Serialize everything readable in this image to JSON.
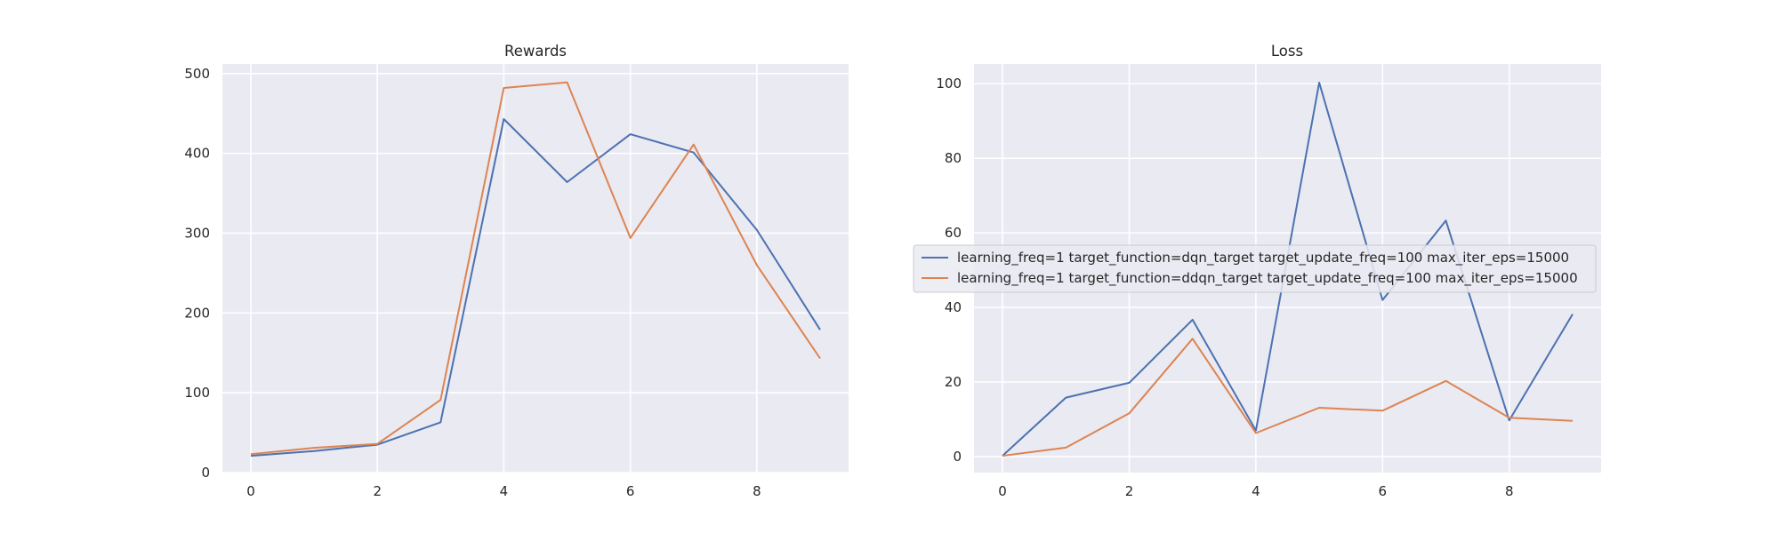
{
  "colors": {
    "dqn": "#4c72b0",
    "ddqn": "#dd8452",
    "background": "#eaeaf2",
    "grid": "#ffffff"
  },
  "legend": {
    "placement": "center-left",
    "entries": [
      "learning_freq=1 target_function=dqn_target target_update_freq=100 max_iter_eps=15000",
      "learning_freq=1 target_function=ddqn_target target_update_freq=100 max_iter_eps=15000"
    ]
  },
  "chart_data": [
    {
      "type": "line",
      "title": "Rewards",
      "xlabel": "",
      "ylabel": "",
      "x": [
        0,
        1,
        2,
        3,
        4,
        5,
        6,
        7,
        8,
        9
      ],
      "xlim": [
        -0.45,
        9.45
      ],
      "ylim": [
        0,
        512
      ],
      "xticks": [
        "0",
        "2",
        "4",
        "6",
        "8"
      ],
      "yticks": [
        "0",
        "100",
        "200",
        "300",
        "400",
        "500"
      ],
      "grid": true,
      "series": [
        {
          "name": "learning_freq=1 target_function=dqn_target target_update_freq=100 max_iter_eps=15000",
          "color": "#4c72b0",
          "values": [
            21,
            27,
            35,
            63,
            443,
            364,
            424,
            401,
            304,
            179
          ]
        },
        {
          "name": "learning_freq=1 target_function=ddqn_target target_update_freq=100 max_iter_eps=15000",
          "color": "#dd8452",
          "values": [
            23,
            31,
            36,
            91,
            482,
            489,
            294,
            411,
            260,
            143
          ]
        }
      ]
    },
    {
      "type": "line",
      "title": "Loss",
      "xlabel": "",
      "ylabel": "",
      "x": [
        0,
        1,
        2,
        3,
        4,
        5,
        6,
        7,
        8,
        9
      ],
      "xlim": [
        -0.45,
        9.45
      ],
      "ylim": [
        -4.3,
        105.3
      ],
      "xticks": [
        "0",
        "2",
        "4",
        "6",
        "8"
      ],
      "yticks": [
        "0",
        "20",
        "40",
        "60",
        "80",
        "100"
      ],
      "grid": true,
      "legend": "center-left",
      "series": [
        {
          "name": "learning_freq=1 target_function=dqn_target target_update_freq=100 max_iter_eps=15000",
          "color": "#4c72b0",
          "values": [
            0.2,
            15.8,
            19.8,
            36.7,
            7.0,
            100.3,
            42.0,
            63.3,
            9.7,
            38.2
          ]
        },
        {
          "name": "learning_freq=1 target_function=ddqn_target target_update_freq=100 max_iter_eps=15000",
          "color": "#dd8452",
          "values": [
            0.2,
            2.4,
            11.6,
            31.6,
            6.3,
            13.1,
            12.3,
            20.3,
            10.4,
            9.6
          ]
        }
      ]
    }
  ]
}
